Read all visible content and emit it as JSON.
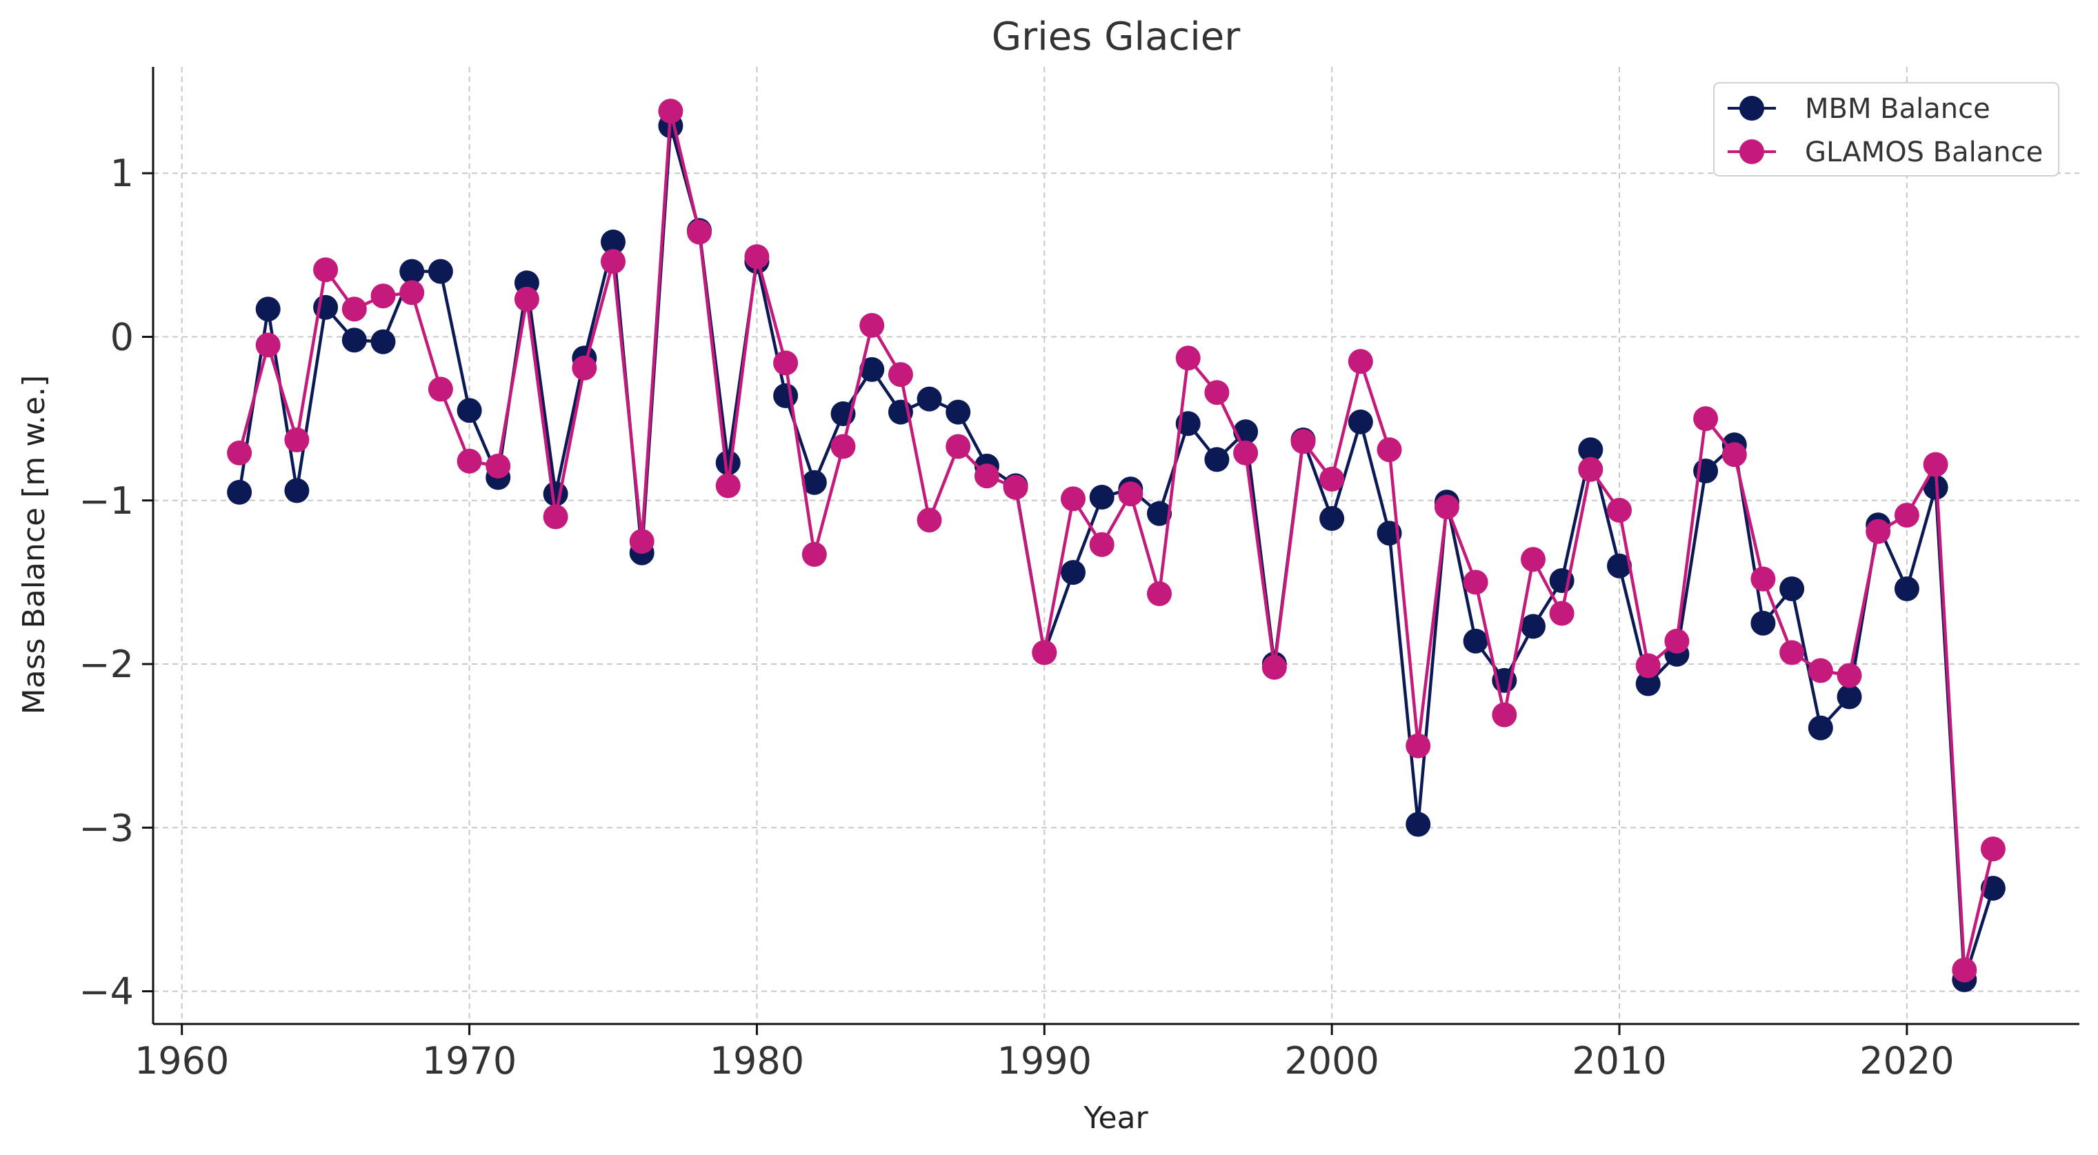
{
  "chart_data": {
    "type": "line",
    "title": "Gries Glacier",
    "xlabel": "Year",
    "ylabel": "Mass Balance [m w.e.]",
    "xlim": [
      1959,
      2026
    ],
    "ylim": [
      -4.2,
      1.65
    ],
    "xticks": [
      1960,
      1970,
      1980,
      1990,
      2000,
      2010,
      2020
    ],
    "yticks": [
      1,
      0,
      -1,
      -2,
      -3,
      -4
    ],
    "ytick_labels": [
      "1",
      "0",
      "−1",
      "−2",
      "−3",
      "−4"
    ],
    "grid": true,
    "legend_position": "top-right",
    "x": [
      1962,
      1963,
      1964,
      1965,
      1966,
      1967,
      1968,
      1969,
      1970,
      1971,
      1972,
      1973,
      1974,
      1975,
      1976,
      1977,
      1978,
      1979,
      1980,
      1981,
      1982,
      1983,
      1984,
      1985,
      1986,
      1987,
      1988,
      1989,
      1990,
      1991,
      1992,
      1993,
      1994,
      1995,
      1996,
      1997,
      1998,
      1999,
      2000,
      2001,
      2002,
      2003,
      2004,
      2005,
      2006,
      2007,
      2008,
      2009,
      2010,
      2011,
      2012,
      2013,
      2014,
      2015,
      2016,
      2017,
      2018,
      2019,
      2020,
      2021,
      2022,
      2023
    ],
    "series": [
      {
        "name": "MBM Balance",
        "color": "#0b1a55",
        "values": [
          -0.95,
          0.17,
          -0.94,
          0.18,
          -0.02,
          -0.03,
          0.4,
          0.4,
          -0.45,
          -0.86,
          0.33,
          -0.96,
          -0.13,
          0.58,
          -1.32,
          1.29,
          0.65,
          -0.77,
          0.46,
          -0.36,
          -0.89,
          -0.47,
          -0.2,
          -0.46,
          -0.38,
          -0.46,
          -0.79,
          -0.91,
          -1.93,
          -1.44,
          -0.98,
          -0.93,
          -1.08,
          -0.53,
          -0.75,
          -0.58,
          -2.0,
          -0.63,
          -1.11,
          -0.52,
          -1.2,
          -2.98,
          -1.01,
          -1.86,
          -2.1,
          -1.77,
          -1.49,
          -0.69,
          -1.4,
          -2.12,
          -1.94,
          -0.82,
          -0.66,
          -1.75,
          -1.54,
          -2.39,
          -2.2,
          -1.15,
          -1.54,
          -0.92,
          -3.93,
          -3.37
        ]
      },
      {
        "name": "GLAMOS Balance",
        "color": "#c41a7c",
        "values": [
          -0.71,
          -0.05,
          -0.63,
          0.41,
          0.17,
          0.25,
          0.27,
          -0.32,
          -0.76,
          -0.79,
          0.23,
          -1.1,
          -0.19,
          0.46,
          -1.25,
          1.38,
          0.64,
          -0.91,
          0.49,
          -0.16,
          -1.33,
          -0.67,
          0.07,
          -0.23,
          -1.12,
          -0.67,
          -0.85,
          -0.92,
          -1.93,
          -0.99,
          -1.27,
          -0.96,
          -1.57,
          -0.13,
          -0.34,
          -0.71,
          -2.02,
          -0.64,
          -0.87,
          -0.15,
          -0.69,
          -2.5,
          -1.04,
          -1.5,
          -2.31,
          -1.36,
          -1.69,
          -0.81,
          -1.06,
          -2.01,
          -1.86,
          -0.5,
          -0.72,
          -1.48,
          -1.93,
          -2.04,
          -2.07,
          -1.19,
          -1.09,
          -0.78,
          -3.87,
          -3.13
        ]
      }
    ]
  }
}
